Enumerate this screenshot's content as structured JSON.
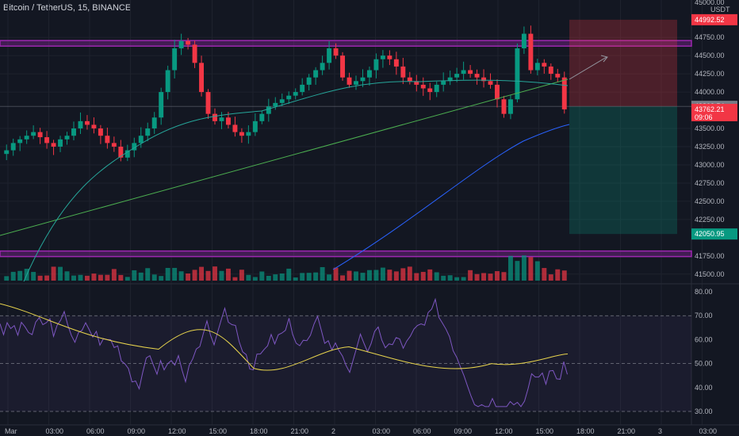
{
  "header": {
    "symbol_line": "Bitcoin / TetherUS, 15, BINANCE",
    "currency": "USDT",
    "top_price": "45000.00"
  },
  "price_axis": {
    "ticks": [
      "44750.00",
      "44500.00",
      "44250.00",
      "44000.00",
      "43500.00",
      "43250.00",
      "43000.00",
      "42750.00",
      "42500.00",
      "42250.00",
      "41750.00",
      "41500.00"
    ],
    "tick_values": [
      44750,
      44500,
      44250,
      44000,
      43500,
      43250,
      43000,
      42750,
      42500,
      42250,
      41750,
      41500
    ],
    "range": [
      41400,
      45100
    ]
  },
  "badges": {
    "stop": {
      "label": "44992.52",
      "value": 44992.52,
      "color": "#f23645"
    },
    "entry": {
      "label": "43803.54",
      "value": 43803.54,
      "color": "#787b86"
    },
    "current": {
      "label": "43762.21",
      "countdown": "09:06",
      "value": 43762.21,
      "color": "#f23645"
    },
    "target": {
      "label": "42050.95",
      "value": 42050.95,
      "color": "#089981"
    }
  },
  "rsi_axis": {
    "ticks": [
      "80.00",
      "70.00",
      "60.00",
      "50.00",
      "40.00",
      "30.00"
    ],
    "tick_values": [
      80,
      70,
      60,
      50,
      40,
      30
    ],
    "range": [
      28,
      82
    ]
  },
  "time_axis": {
    "labels": [
      "Mar",
      "03:00",
      "06:00",
      "09:00",
      "12:00",
      "15:00",
      "18:00",
      "21:00",
      "2",
      "03:00",
      "06:00",
      "09:00",
      "12:00",
      "15:00",
      "18:00",
      "21:00",
      "3",
      "03:00"
    ],
    "positions_note": ""
  },
  "colors": {
    "up": "#089981",
    "down": "#f23645",
    "zone": "#9c27b0",
    "ma_fast": "#26a69a",
    "ma_slow": "#2962ff",
    "trend": "#4caf50",
    "rsi": "#7e57c2",
    "rsi_ma": "#e8d44d"
  },
  "chart_data": {
    "type": "line",
    "title": "Bitcoin / TetherUS, 15, BINANCE",
    "price_series_approx": [
      43200,
      43300,
      43350,
      43400,
      43450,
      43380,
      43300,
      43250,
      43350,
      43400,
      43500,
      43600,
      43550,
      43500,
      43400,
      43300,
      43250,
      43100,
      43200,
      43300,
      43400,
      43500,
      43650,
      44000,
      44300,
      44600,
      44700,
      44650,
      44400,
      44000,
      43700,
      43600,
      43650,
      43550,
      43450,
      43400,
      43450,
      43600,
      43700,
      43800,
      43850,
      43900,
      43950,
      44000,
      44100,
      44200,
      44300,
      44400,
      44600,
      44500,
      44200,
      44100,
      44150,
      44200,
      44300,
      44450,
      44500,
      44450,
      44350,
      44200,
      44150,
      44100,
      44050,
      44000,
      44100,
      44150,
      44200,
      44250,
      44300,
      44250,
      44200,
      44150,
      44100,
      43900,
      43700,
      43900,
      44600,
      44800,
      44300,
      44400,
      44350,
      44250,
      44200,
      43762
    ],
    "support_zone": [
      41750,
      41850
    ],
    "resistance_zone": [
      44650,
      44750
    ],
    "long_position": {
      "entry": 43803.54,
      "stop": 44992.52,
      "target": 42050.95
    }
  }
}
